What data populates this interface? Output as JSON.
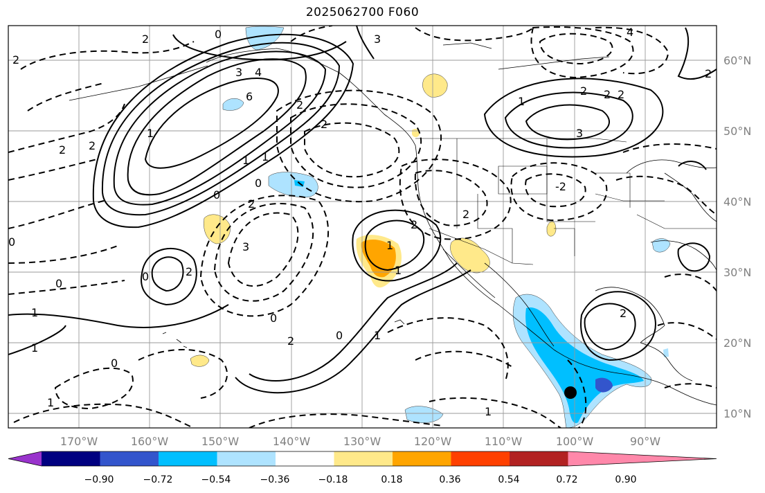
{
  "title": "2025062700 F060",
  "map": {
    "lat_labels": [
      "60°N",
      "50°N",
      "40°N",
      "30°N",
      "20°N",
      "10°N"
    ],
    "lon_labels": [
      "170°W",
      "160°W",
      "150°W",
      "140°W",
      "130°W",
      "120°W",
      "110°W",
      "100°W",
      "90°W"
    ],
    "contour_labels": [
      "2",
      "0",
      "2",
      "1",
      "0",
      "4",
      "3",
      "3",
      "4",
      "6",
      "2",
      "1",
      "2",
      "2",
      "2",
      "0",
      "1",
      "2",
      "2",
      "2",
      "1",
      "3",
      "2",
      "-2",
      "1",
      "2",
      "2",
      "2",
      "3",
      "1",
      "0",
      "2",
      "0",
      "2",
      "0",
      "1",
      "1",
      "1",
      "0",
      "1",
      "0",
      "1",
      "2",
      "0"
    ],
    "marker": "black-dot"
  },
  "colorbar": {
    "tick_labels": [
      "−0.90",
      "−0.72",
      "−0.54",
      "−0.36",
      "−0.18",
      "0.18",
      "0.36",
      "0.54",
      "0.72",
      "0.90"
    ],
    "colors": [
      "#9933cc",
      "#000080",
      "#3355cc",
      "#00bfff",
      "#aee3ff",
      "#ffffff",
      "#ffe98a",
      "#ffa500",
      "#ff4000",
      "#b22222",
      "#ff88aa"
    ]
  }
}
